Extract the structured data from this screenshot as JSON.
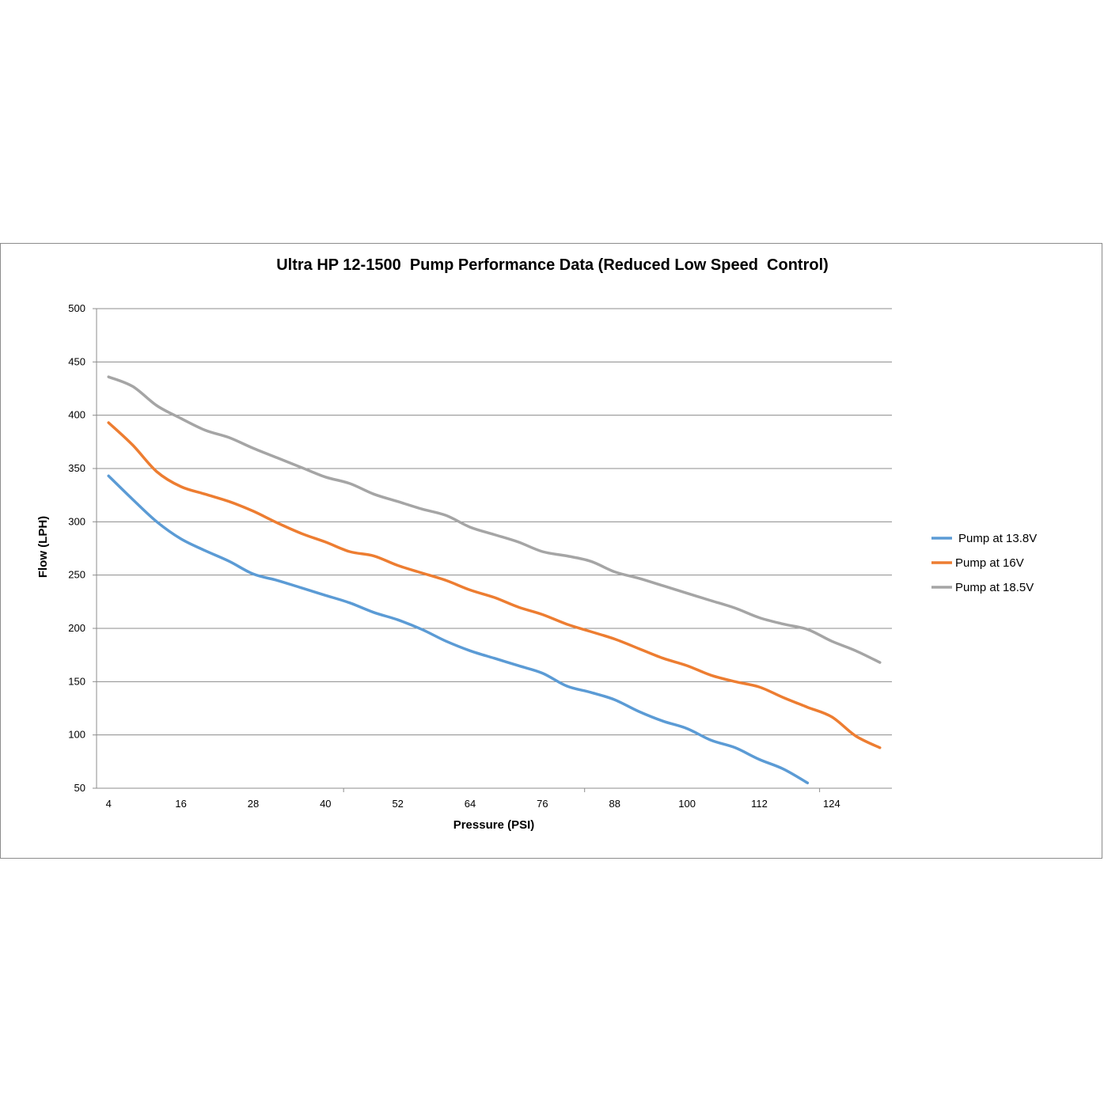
{
  "chart_data": {
    "type": "line",
    "title": "Ultra HP 12-1500  Pump Performance Data (Reduced Low Speed  Control)",
    "xlabel": "Pressure (PSI)",
    "ylabel": "Flow (LPH)",
    "x": [
      4,
      8,
      12,
      16,
      20,
      24,
      28,
      32,
      36,
      40,
      44,
      48,
      52,
      56,
      60,
      64,
      68,
      72,
      76,
      80,
      84,
      88,
      92,
      96,
      100,
      104,
      108,
      112,
      116,
      120,
      124,
      128,
      132
    ],
    "xticks": [
      4,
      16,
      28,
      40,
      52,
      64,
      76,
      88,
      100,
      112,
      124
    ],
    "xlim": [
      2,
      134
    ],
    "ylim": [
      50,
      500
    ],
    "yticks": [
      50,
      100,
      150,
      200,
      250,
      300,
      350,
      400,
      450,
      500
    ],
    "grid": "horizontal",
    "legend_position": "right",
    "series": [
      {
        "name": "Pump at 13.8V",
        "color": "#5b9bd5",
        "values": [
          343,
          321,
          300,
          284,
          273,
          263,
          251,
          245,
          238,
          231,
          224,
          215,
          208,
          199,
          188,
          179,
          172,
          165,
          158,
          146,
          140,
          133,
          122,
          113,
          106,
          95,
          88,
          77,
          68,
          55,
          null,
          null,
          null
        ]
      },
      {
        "name": "Pump at 16V",
        "color": "#ed7d31",
        "values": [
          393,
          372,
          347,
          333,
          326,
          319,
          310,
          299,
          289,
          281,
          272,
          268,
          259,
          252,
          245,
          236,
          229,
          220,
          213,
          204,
          197,
          190,
          181,
          172,
          165,
          156,
          150,
          145,
          135,
          126,
          117,
          99,
          88
        ]
      },
      {
        "name": "Pump at 18.5V",
        "color": "#a5a5a5",
        "values": [
          436,
          427,
          409,
          397,
          386,
          379,
          369,
          360,
          351,
          342,
          336,
          326,
          319,
          312,
          306,
          295,
          288,
          281,
          272,
          268,
          263,
          253,
          247,
          240,
          233,
          226,
          219,
          210,
          204,
          199,
          188,
          179,
          168
        ]
      }
    ]
  }
}
